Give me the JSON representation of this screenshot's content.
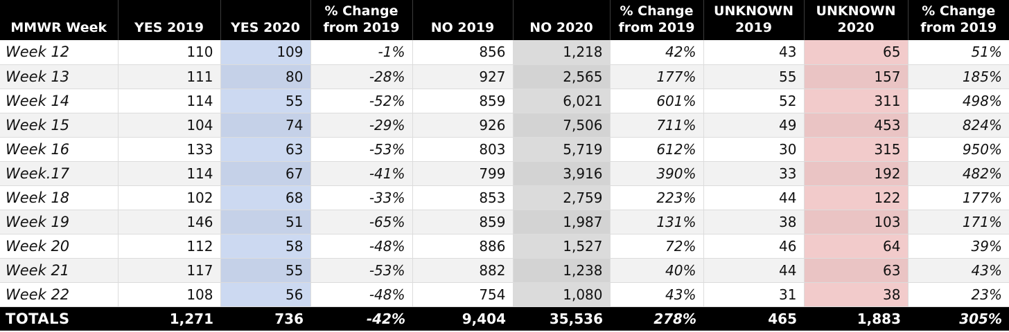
{
  "colors": {
    "header_bg": "#000000",
    "header_text": "#ffffff",
    "row_stripe": "#f2f2f2",
    "yes_2020_highlight": "#ccd9f1",
    "no_2020_highlight": "#d9d9d9",
    "unknown_2020_highlight": "#f2cbcb",
    "grid_border": "#dcdcdc",
    "totals_bg": "#000000"
  },
  "chart_data": {
    "type": "table",
    "columns": [
      "MMWR Week",
      "YES 2019",
      "YES 2020",
      "% Change\nfrom 2019",
      "NO 2019",
      "NO 2020",
      "% Change\nfrom 2019",
      "UNKNOWN\n2019",
      "UNKNOWN\n2020",
      "% Change\nfrom 2019"
    ],
    "rows": [
      [
        "Week 12",
        "110",
        "109",
        "-1%",
        "856",
        "1,218",
        "42%",
        "43",
        "65",
        "51%"
      ],
      [
        "Week 13",
        "111",
        "80",
        "-28%",
        "927",
        "2,565",
        "177%",
        "55",
        "157",
        "185%"
      ],
      [
        "Week 14",
        "114",
        "55",
        "-52%",
        "859",
        "6,021",
        "601%",
        "52",
        "311",
        "498%"
      ],
      [
        "Week 15",
        "104",
        "74",
        "-29%",
        "926",
        "7,506",
        "711%",
        "49",
        "453",
        "824%"
      ],
      [
        "Week 16",
        "133",
        "63",
        "-53%",
        "803",
        "5,719",
        "612%",
        "30",
        "315",
        "950%"
      ],
      [
        "Week.17",
        "114",
        "67",
        "-41%",
        "799",
        "3,916",
        "390%",
        "33",
        "192",
        "482%"
      ],
      [
        "Week 18",
        "102",
        "68",
        "-33%",
        "853",
        "2,759",
        "223%",
        "44",
        "122",
        "177%"
      ],
      [
        "Week 19",
        "146",
        "51",
        "-65%",
        "859",
        "1,987",
        "131%",
        "38",
        "103",
        "171%"
      ],
      [
        "Week 20",
        "112",
        "58",
        "-48%",
        "886",
        "1,527",
        "72%",
        "46",
        "64",
        "39%"
      ],
      [
        "Week 21",
        "117",
        "55",
        "-53%",
        "882",
        "1,238",
        "40%",
        "44",
        "63",
        "43%"
      ],
      [
        "Week 22",
        "108",
        "56",
        "-48%",
        "754",
        "1,080",
        "43%",
        "31",
        "38",
        "23%"
      ]
    ],
    "totals": [
      "TOTALS",
      "1,271",
      "736",
      "-42%",
      "9,404",
      "35,536",
      "278%",
      "465",
      "1,883",
      "305%"
    ],
    "layout_hints": {
      "highlighted_columns": {
        "YES 2020": "blue",
        "NO 2020": "gray",
        "UNKNOWN 2020": "pink"
      },
      "striped_rows": true,
      "totals_row_style": "black background, white bold text"
    }
  }
}
